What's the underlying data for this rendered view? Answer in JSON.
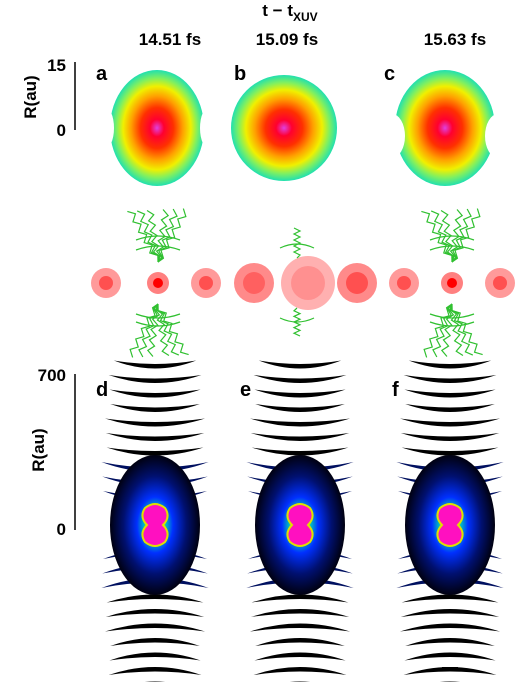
{
  "header": {
    "main": "t − t",
    "subscript": "XUV"
  },
  "times": [
    "14.51 fs",
    "15.09 fs",
    "15.63 fs"
  ],
  "top_axis": {
    "label": "R(au)",
    "ticks": [
      "15",
      "0"
    ]
  },
  "bottom_axis": {
    "label": "R(au)",
    "ticks": [
      "700",
      "0"
    ]
  },
  "panels": [
    "a",
    "b",
    "c",
    "d",
    "e",
    "f"
  ]
}
